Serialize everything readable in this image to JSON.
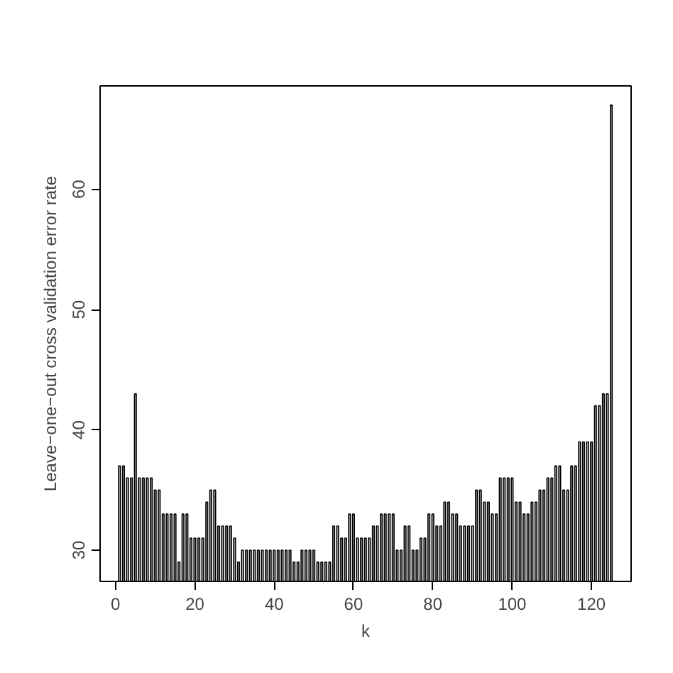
{
  "chart_data": {
    "type": "bar",
    "xlabel": "k",
    "ylabel": "Leave−one−out cross validation error rate",
    "x": [
      1,
      2,
      3,
      4,
      5,
      6,
      7,
      8,
      9,
      10,
      11,
      12,
      13,
      14,
      15,
      16,
      17,
      18,
      19,
      20,
      21,
      22,
      23,
      24,
      25,
      26,
      27,
      28,
      29,
      30,
      31,
      32,
      33,
      34,
      35,
      36,
      37,
      38,
      39,
      40,
      41,
      42,
      43,
      44,
      45,
      46,
      47,
      48,
      49,
      50,
      51,
      52,
      53,
      54,
      55,
      56,
      57,
      58,
      59,
      60,
      61,
      62,
      63,
      64,
      65,
      66,
      67,
      68,
      69,
      70,
      71,
      72,
      73,
      74,
      75,
      76,
      77,
      78,
      79,
      80,
      81,
      82,
      83,
      84,
      85,
      86,
      87,
      88,
      89,
      90,
      91,
      92,
      93,
      94,
      95,
      96,
      97,
      98,
      99,
      100,
      101,
      102,
      103,
      104,
      105,
      106,
      107,
      108,
      109,
      110,
      111,
      112,
      113,
      114,
      115,
      116,
      117,
      118,
      119,
      120,
      121,
      122,
      123,
      124,
      125
    ],
    "values": [
      37,
      37,
      36,
      36,
      43,
      36,
      36,
      36,
      36,
      35,
      35,
      33,
      33,
      33,
      33,
      29,
      33,
      33,
      31,
      31,
      31,
      31,
      34,
      35,
      35,
      32,
      32,
      32,
      32,
      31,
      29,
      30,
      30,
      30,
      30,
      30,
      30,
      30,
      30,
      30,
      30,
      30,
      30,
      30,
      29,
      29,
      30,
      30,
      30,
      30,
      29,
      29,
      29,
      29,
      32,
      32,
      31,
      31,
      33,
      33,
      31,
      31,
      31,
      31,
      32,
      32,
      33,
      33,
      33,
      33,
      30,
      30,
      32,
      32,
      30,
      30,
      31,
      31,
      33,
      33,
      32,
      32,
      34,
      34,
      33,
      33,
      32,
      32,
      32,
      32,
      35,
      35,
      34,
      34,
      33,
      33,
      36,
      36,
      36,
      36,
      34,
      34,
      33,
      33,
      34,
      34,
      35,
      35,
      36,
      36,
      37,
      37,
      35,
      35,
      37,
      37,
      39,
      39,
      39,
      39,
      42,
      42,
      43,
      43,
      67
    ],
    "color": "#bebebe",
    "xlim": [
      -3.9,
      130
    ],
    "ylim": [
      27.4,
      68.6
    ],
    "xticks": [
      0,
      20,
      40,
      60,
      80,
      100,
      120
    ],
    "yticks": [
      30,
      40,
      50,
      60
    ],
    "grid": false
  }
}
